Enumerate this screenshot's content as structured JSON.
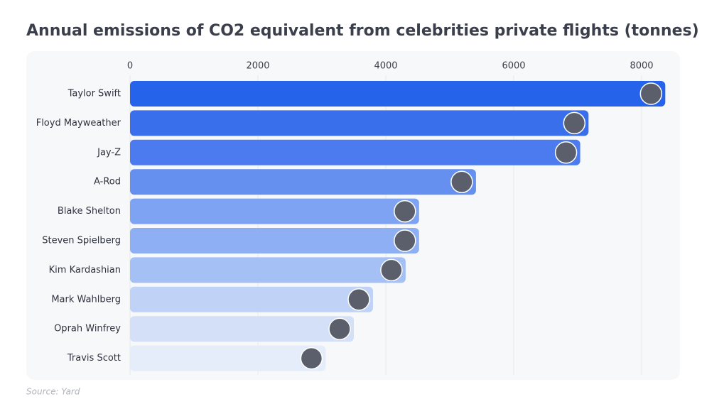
{
  "chart_data": {
    "type": "barh",
    "title": "Annual emissions of CO2 equivalent from celebrities private flights (tonnes)",
    "source": "Source: Yard",
    "categories": [
      "Taylor Swift",
      "Floyd Mayweather",
      "Jay-Z",
      "A-Rod",
      "Blake Shelton",
      "Steven Spielberg",
      "Kim Kardashian",
      "Mark Wahlberg",
      "Oprah Winfrey",
      "Travis Scott"
    ],
    "values": [
      8370,
      7170,
      7040,
      5410,
      4520,
      4520,
      4310,
      3800,
      3500,
      3060
    ],
    "colors": [
      "#2563eb",
      "#3a6fec",
      "#4b7bee",
      "#6590f0",
      "#7ea3f2",
      "#8eaff3",
      "#a4c0f5",
      "#c0d3f7",
      "#d3e0f8",
      "#e6edfa"
    ],
    "xlim": [
      0,
      8450
    ],
    "xticks": [
      0,
      2000,
      4000,
      6000,
      8000
    ],
    "grid": true
  }
}
